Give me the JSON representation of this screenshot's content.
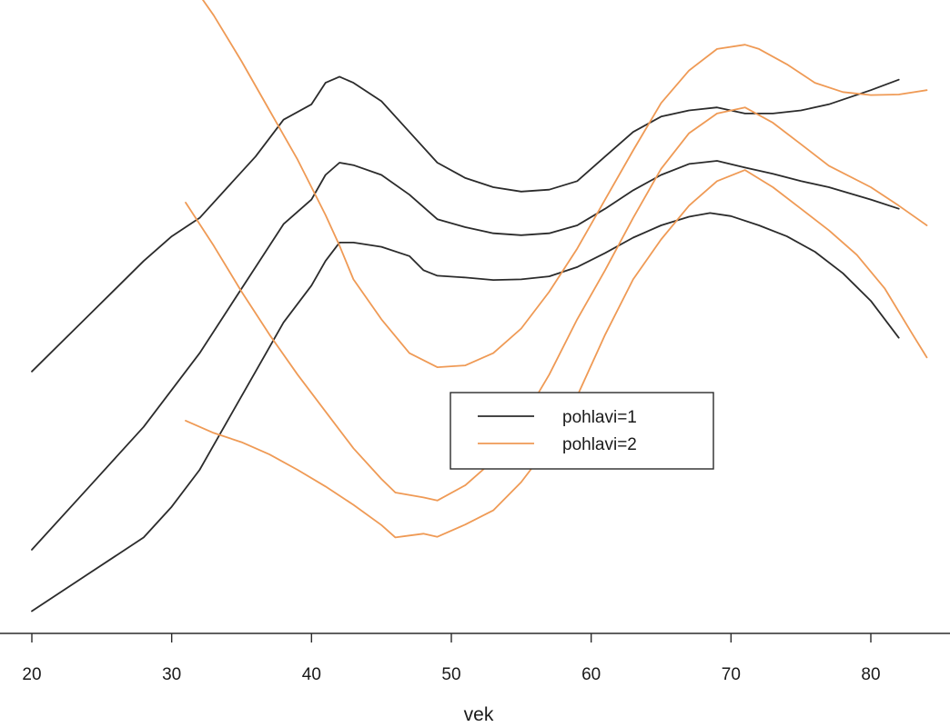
{
  "chart_data": {
    "type": "line",
    "xlabel": "vek",
    "ylabel": "",
    "xlim": [
      20,
      85
    ],
    "ylim": [
      0,
      100
    ],
    "x_ticks": [
      20,
      30,
      40,
      50,
      60,
      70,
      80
    ],
    "y_axis_shown": false,
    "grid": false,
    "legend": {
      "position": "center-right",
      "entries": [
        {
          "label": "pohlavi=1",
          "color": "#2b2b2b"
        },
        {
          "label": "pohlavi=2",
          "color": "#ef9a55"
        }
      ]
    },
    "series": [
      {
        "group": "pohlavi=1",
        "role": "upper",
        "color": "#2b2b2b",
        "points": [
          [
            20,
            41
          ],
          [
            24,
            50
          ],
          [
            28,
            59
          ],
          [
            30,
            63
          ],
          [
            32,
            66
          ],
          [
            34,
            71
          ],
          [
            36,
            76
          ],
          [
            38,
            82
          ],
          [
            40,
            84.5
          ],
          [
            41,
            88
          ],
          [
            42,
            89
          ],
          [
            43,
            88
          ],
          [
            45,
            85
          ],
          [
            47,
            80
          ],
          [
            49,
            75
          ],
          [
            51,
            72.5
          ],
          [
            53,
            71
          ],
          [
            55,
            70.3
          ],
          [
            57,
            70.6
          ],
          [
            59,
            72
          ],
          [
            61,
            76
          ],
          [
            63,
            80
          ],
          [
            65,
            82.5
          ],
          [
            67,
            83.5
          ],
          [
            69,
            84
          ],
          [
            71,
            83
          ],
          [
            73,
            83
          ],
          [
            75,
            83.5
          ],
          [
            77,
            84.5
          ],
          [
            80,
            86.8
          ],
          [
            82,
            88.5
          ]
        ]
      },
      {
        "group": "pohlavi=1",
        "role": "fit",
        "color": "#2b2b2b",
        "points": [
          [
            20,
            12
          ],
          [
            24,
            22
          ],
          [
            28,
            32
          ],
          [
            30,
            38
          ],
          [
            32,
            44
          ],
          [
            34,
            51
          ],
          [
            36,
            58
          ],
          [
            38,
            65
          ],
          [
            40,
            69
          ],
          [
            41,
            73
          ],
          [
            42,
            75
          ],
          [
            43,
            74.6
          ],
          [
            45,
            73
          ],
          [
            47,
            69.8
          ],
          [
            49,
            65.8
          ],
          [
            51,
            64.5
          ],
          [
            53,
            63.5
          ],
          [
            55,
            63.2
          ],
          [
            57,
            63.5
          ],
          [
            59,
            64.8
          ],
          [
            61,
            67.5
          ],
          [
            63,
            70.5
          ],
          [
            65,
            73
          ],
          [
            67,
            74.8
          ],
          [
            69,
            75.3
          ],
          [
            71,
            74.2
          ],
          [
            73,
            73.2
          ],
          [
            75,
            72
          ],
          [
            77,
            71
          ],
          [
            80,
            69
          ],
          [
            82,
            67.5
          ]
        ]
      },
      {
        "group": "pohlavi=1",
        "role": "lower",
        "color": "#2b2b2b",
        "points": [
          [
            20,
            2
          ],
          [
            24,
            8
          ],
          [
            28,
            14
          ],
          [
            30,
            19
          ],
          [
            32,
            25
          ],
          [
            34,
            33
          ],
          [
            36,
            41
          ],
          [
            38,
            49
          ],
          [
            40,
            55
          ],
          [
            41,
            59
          ],
          [
            42,
            62
          ],
          [
            43,
            62
          ],
          [
            45,
            61.3
          ],
          [
            47,
            59.8
          ],
          [
            48,
            57.5
          ],
          [
            49,
            56.6
          ],
          [
            51,
            56.3
          ],
          [
            53,
            55.9
          ],
          [
            55,
            56
          ],
          [
            57,
            56.5
          ],
          [
            59,
            58
          ],
          [
            61,
            60.3
          ],
          [
            63,
            62.8
          ],
          [
            65,
            64.8
          ],
          [
            67,
            66.2
          ],
          [
            68.5,
            66.8
          ],
          [
            70,
            66.3
          ],
          [
            72,
            64.8
          ],
          [
            74,
            63
          ],
          [
            76,
            60.5
          ],
          [
            78,
            57
          ],
          [
            80,
            52.5
          ],
          [
            82,
            46.5
          ]
        ]
      },
      {
        "group": "pohlavi=2",
        "role": "upper",
        "color": "#ef9a55",
        "points": [
          [
            31,
            105.5
          ],
          [
            33,
            99
          ],
          [
            35,
            91.5
          ],
          [
            37,
            83.5
          ],
          [
            39,
            75.5
          ],
          [
            41,
            66.5
          ],
          [
            42,
            61.5
          ],
          [
            43,
            56
          ],
          [
            45,
            49.5
          ],
          [
            47,
            44
          ],
          [
            49,
            41.7
          ],
          [
            51,
            42
          ],
          [
            53,
            44
          ],
          [
            55,
            48
          ],
          [
            57,
            54
          ],
          [
            59,
            61
          ],
          [
            61,
            69
          ],
          [
            63,
            77
          ],
          [
            65,
            84.7
          ],
          [
            67,
            90
          ],
          [
            69,
            93.5
          ],
          [
            71,
            94.2
          ],
          [
            72,
            93.5
          ],
          [
            74,
            91
          ],
          [
            76,
            88
          ],
          [
            78,
            86.5
          ],
          [
            80,
            86
          ],
          [
            82,
            86.1
          ],
          [
            84,
            86.8
          ]
        ]
      },
      {
        "group": "pohlavi=2",
        "role": "fit",
        "color": "#ef9a55",
        "points": [
          [
            31,
            68.5
          ],
          [
            33,
            61.5
          ],
          [
            35,
            54
          ],
          [
            37,
            47
          ],
          [
            39,
            40.5
          ],
          [
            41,
            34.5
          ],
          [
            43,
            28.5
          ],
          [
            45,
            23.5
          ],
          [
            46,
            21.3
          ],
          [
            48,
            20.5
          ],
          [
            49,
            20
          ],
          [
            51,
            22.5
          ],
          [
            53,
            26.5
          ],
          [
            55,
            32.8
          ],
          [
            57,
            40.5
          ],
          [
            59,
            49.5
          ],
          [
            61,
            57.5
          ],
          [
            63,
            66
          ],
          [
            65,
            74
          ],
          [
            67,
            79.8
          ],
          [
            69,
            83
          ],
          [
            71,
            84
          ],
          [
            73,
            81.5
          ],
          [
            75,
            78
          ],
          [
            77,
            74.5
          ],
          [
            80,
            71
          ],
          [
            82,
            68
          ],
          [
            84,
            64.8
          ]
        ]
      },
      {
        "group": "pohlavi=2",
        "role": "lower",
        "color": "#ef9a55",
        "points": [
          [
            31,
            33
          ],
          [
            33,
            31
          ],
          [
            35,
            29.5
          ],
          [
            37,
            27.5
          ],
          [
            39,
            25
          ],
          [
            41,
            22.3
          ],
          [
            43,
            19.3
          ],
          [
            45,
            16
          ],
          [
            46,
            14
          ],
          [
            47,
            14.3
          ],
          [
            48,
            14.6
          ],
          [
            49,
            14.1
          ],
          [
            51,
            16.1
          ],
          [
            53,
            18.4
          ],
          [
            55,
            23
          ],
          [
            57,
            29
          ],
          [
            59,
            37
          ],
          [
            61,
            47
          ],
          [
            63,
            56
          ],
          [
            65,
            62.5
          ],
          [
            67,
            68
          ],
          [
            69,
            72
          ],
          [
            71,
            73.8
          ],
          [
            73,
            71
          ],
          [
            75,
            67.5
          ],
          [
            77,
            64
          ],
          [
            79,
            60
          ],
          [
            81,
            54.5
          ],
          [
            83,
            47
          ],
          [
            84,
            43.3
          ]
        ]
      }
    ]
  }
}
